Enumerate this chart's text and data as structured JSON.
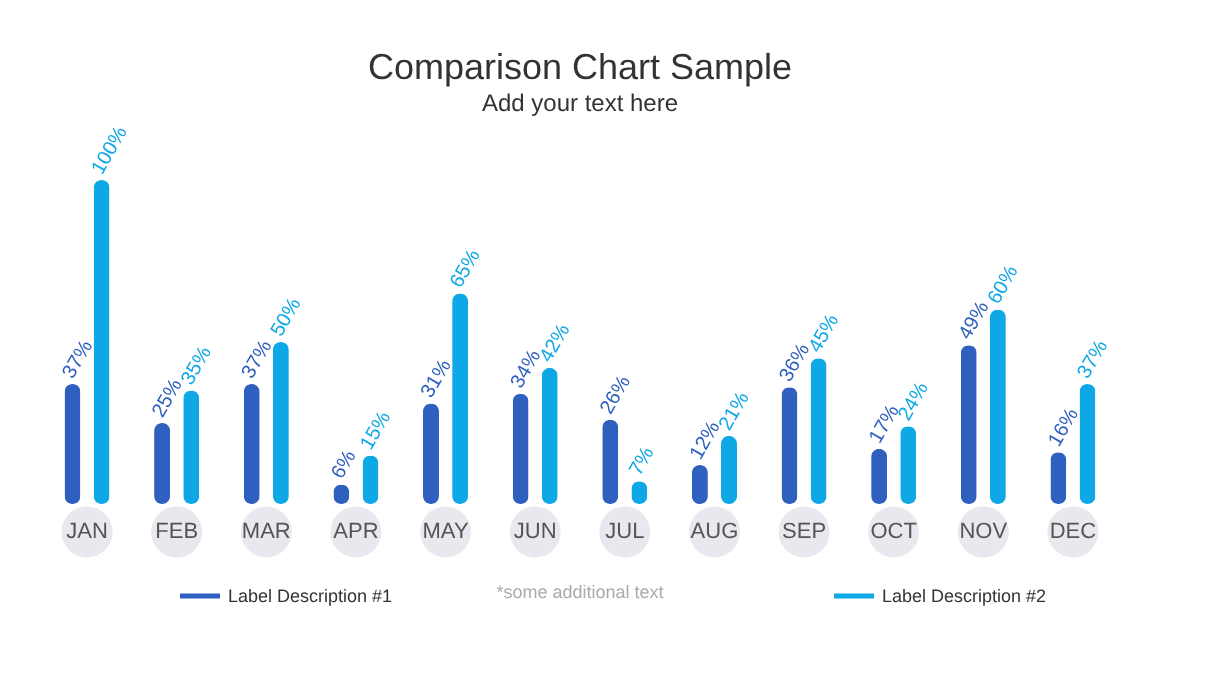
{
  "chart_data": {
    "type": "bar",
    "title": "Comparison Chart Sample",
    "subtitle": "Add your text here",
    "categories": [
      "JAN",
      "FEB",
      "MAR",
      "APR",
      "MAY",
      "JUN",
      "JUL",
      "AUG",
      "SEP",
      "OCT",
      "NOV",
      "DEC"
    ],
    "series": [
      {
        "name": "Label Description #1",
        "color": "#2f5fbf",
        "values": [
          37,
          25,
          37,
          6,
          31,
          34,
          26,
          12,
          36,
          17,
          49,
          16
        ],
        "value_labels": [
          "37%",
          "25%",
          "37%",
          "6%",
          "31%",
          "34%",
          "26%",
          "12%",
          "36%",
          "17%",
          "49%",
          "16%"
        ]
      },
      {
        "name": "Label Description #2",
        "color": "#0fa8e6",
        "values": [
          100,
          35,
          50,
          15,
          65,
          42,
          7,
          21,
          45,
          24,
          60,
          37
        ],
        "value_labels": [
          "100%",
          "35%",
          "50%",
          "15%",
          "65%",
          "42%",
          "7%",
          "21%",
          "45%",
          "24%",
          "60%",
          "37%"
        ]
      }
    ],
    "ylim": [
      0,
      100
    ],
    "grid": false,
    "legend": "bottom",
    "annotations": [
      "*some additional text"
    ]
  }
}
